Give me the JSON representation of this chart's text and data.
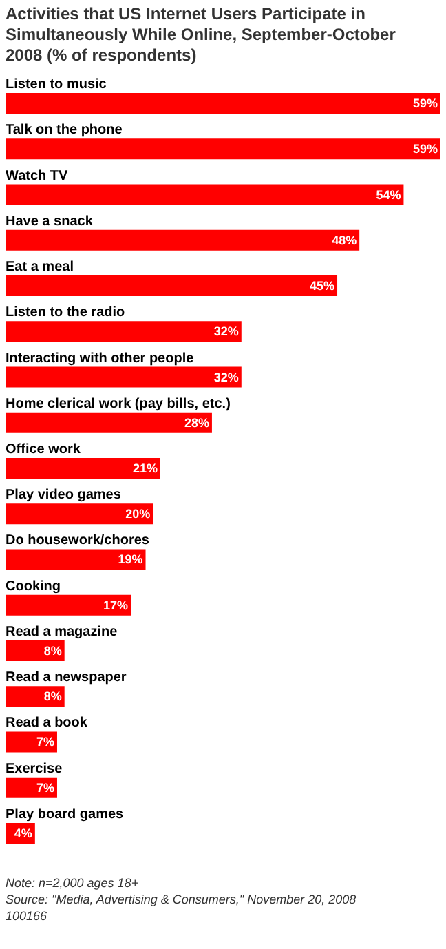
{
  "chart_data": {
    "type": "bar",
    "orientation": "horizontal",
    "title": "Activities that US Internet Users Participate in Simultaneously While Online, September-October 2008 (% of respondents)",
    "categories": [
      "Listen to music",
      "Talk on the phone",
      "Watch TV",
      "Have a snack",
      "Eat a meal",
      "Listen to the radio",
      "Interacting with other people",
      "Home clerical work (pay bills, etc.)",
      "Office work",
      "Play video games",
      "Do housework/chores",
      "Cooking",
      "Read a magazine",
      "Read a newspaper",
      "Read a book",
      "Exercise",
      "Play board games"
    ],
    "values": [
      59,
      59,
      54,
      48,
      45,
      32,
      32,
      28,
      21,
      20,
      19,
      17,
      8,
      8,
      7,
      7,
      4
    ],
    "value_labels": [
      "59%",
      "59%",
      "54%",
      "48%",
      "45%",
      "32%",
      "32%",
      "28%",
      "21%",
      "20%",
      "19%",
      "17%",
      "8%",
      "8%",
      "7%",
      "7%",
      "4%"
    ],
    "color": "#ff0000",
    "annotations": [
      "Note: n=2,000 ages 18+",
      "Source: \"Media, Advertising & Consumers,\" November 20, 2008",
      "100166"
    ]
  }
}
